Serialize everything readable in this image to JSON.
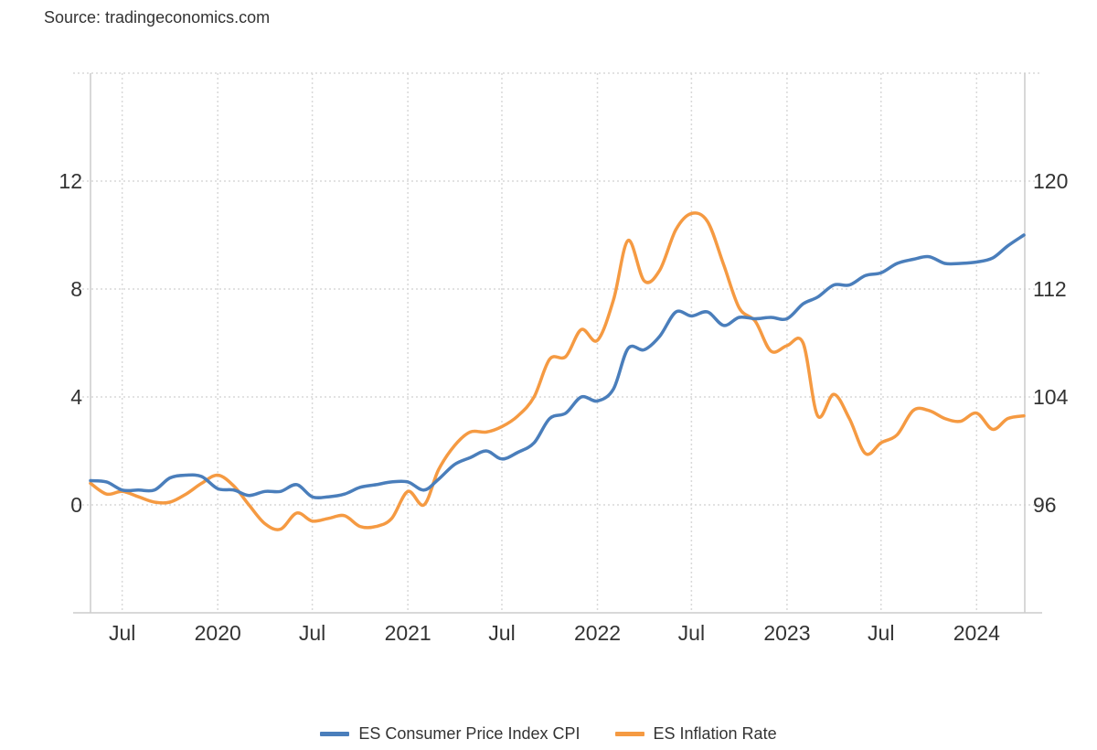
{
  "source": "Source: tradingeconomics.com",
  "colors": {
    "cpi": "#4a7ebb",
    "inflation": "#f59a42",
    "grid": "#d9d9d9",
    "axis": "#cccccc"
  },
  "chart_data": {
    "type": "line",
    "title": "",
    "xlabel": "",
    "left_axis": {
      "min": -4,
      "max": 16,
      "ticks": [
        0,
        4,
        8,
        12
      ]
    },
    "right_axis": {
      "min": 88,
      "max": 128,
      "ticks": [
        96,
        104,
        112,
        120
      ]
    },
    "x_ticks": [
      {
        "label": "Jul",
        "date": "2019-07-01"
      },
      {
        "label": "2020",
        "date": "2020-01-01"
      },
      {
        "label": "Jul",
        "date": "2020-07-01"
      },
      {
        "label": "2021",
        "date": "2021-01-01"
      },
      {
        "label": "Jul",
        "date": "2021-07-01"
      },
      {
        "label": "2022",
        "date": "2022-01-01"
      },
      {
        "label": "Jul",
        "date": "2022-07-01"
      },
      {
        "label": "2023",
        "date": "2023-01-01"
      },
      {
        "label": "Jul",
        "date": "2023-07-01"
      },
      {
        "label": "2024",
        "date": "2024-01-01"
      }
    ],
    "x_range": [
      "2019-05-01",
      "2024-04-01"
    ],
    "legend_position": "bottom",
    "grid": true,
    "series": [
      {
        "name": "ES Consumer Price Index CPI",
        "axis": "right",
        "color_key": "cpi",
        "x": [
          "2019-05-01",
          "2019-06-01",
          "2019-07-01",
          "2019-08-01",
          "2019-09-01",
          "2019-10-01",
          "2019-11-01",
          "2019-12-01",
          "2020-01-01",
          "2020-02-01",
          "2020-03-01",
          "2020-04-01",
          "2020-05-01",
          "2020-06-01",
          "2020-07-01",
          "2020-08-01",
          "2020-09-01",
          "2020-10-01",
          "2020-11-01",
          "2020-12-01",
          "2021-01-01",
          "2021-02-01",
          "2021-03-01",
          "2021-04-01",
          "2021-05-01",
          "2021-06-01",
          "2021-07-01",
          "2021-08-01",
          "2021-09-01",
          "2021-10-01",
          "2021-11-01",
          "2021-12-01",
          "2022-01-01",
          "2022-02-01",
          "2022-03-01",
          "2022-04-01",
          "2022-05-01",
          "2022-06-01",
          "2022-07-01",
          "2022-08-01",
          "2022-09-01",
          "2022-10-01",
          "2022-11-01",
          "2022-12-01",
          "2023-01-01",
          "2023-02-01",
          "2023-03-01",
          "2023-04-01",
          "2023-05-01",
          "2023-06-01",
          "2023-07-01",
          "2023-08-01",
          "2023-09-01",
          "2023-10-01",
          "2023-11-01",
          "2023-12-01",
          "2024-01-01",
          "2024-02-01",
          "2024-03-01",
          "2024-04-01"
        ],
        "values": [
          97.8,
          97.7,
          97.1,
          97.1,
          97.1,
          98.0,
          98.2,
          98.1,
          97.2,
          97.1,
          96.7,
          97.0,
          97.0,
          97.5,
          96.6,
          96.6,
          96.8,
          97.3,
          97.5,
          97.7,
          97.7,
          97.1,
          97.9,
          99.0,
          99.5,
          100.0,
          99.4,
          99.9,
          100.6,
          102.4,
          102.8,
          104.0,
          103.7,
          104.6,
          107.6,
          107.5,
          108.5,
          110.3,
          110.0,
          110.3,
          109.3,
          109.9,
          109.8,
          109.9,
          109.8,
          110.9,
          111.4,
          112.3,
          112.3,
          113.0,
          113.2,
          113.9,
          114.2,
          114.4,
          113.9,
          113.9,
          114.0,
          114.3,
          115.2,
          116.0
        ]
      },
      {
        "name": "ES Inflation Rate",
        "axis": "left",
        "color_key": "inflation",
        "x": [
          "2019-05-01",
          "2019-06-01",
          "2019-07-01",
          "2019-08-01",
          "2019-09-01",
          "2019-10-01",
          "2019-11-01",
          "2019-12-01",
          "2020-01-01",
          "2020-02-01",
          "2020-03-01",
          "2020-04-01",
          "2020-05-01",
          "2020-06-01",
          "2020-07-01",
          "2020-08-01",
          "2020-09-01",
          "2020-10-01",
          "2020-11-01",
          "2020-12-01",
          "2021-01-01",
          "2021-02-01",
          "2021-03-01",
          "2021-04-01",
          "2021-05-01",
          "2021-06-01",
          "2021-07-01",
          "2021-08-01",
          "2021-09-01",
          "2021-10-01",
          "2021-11-01",
          "2021-12-01",
          "2022-01-01",
          "2022-02-01",
          "2022-03-01",
          "2022-04-01",
          "2022-05-01",
          "2022-06-01",
          "2022-07-01",
          "2022-08-01",
          "2022-09-01",
          "2022-10-01",
          "2022-11-01",
          "2022-12-01",
          "2023-01-01",
          "2023-02-01",
          "2023-03-01",
          "2023-04-01",
          "2023-05-01",
          "2023-06-01",
          "2023-07-01",
          "2023-08-01",
          "2023-09-01",
          "2023-10-01",
          "2023-11-01",
          "2023-12-01",
          "2024-01-01",
          "2024-02-01",
          "2024-03-01",
          "2024-04-01"
        ],
        "values": [
          0.8,
          0.4,
          0.5,
          0.3,
          0.1,
          0.1,
          0.4,
          0.8,
          1.1,
          0.7,
          0.0,
          -0.7,
          -0.9,
          -0.3,
          -0.6,
          -0.5,
          -0.4,
          -0.8,
          -0.8,
          -0.5,
          0.5,
          0.0,
          1.3,
          2.2,
          2.7,
          2.7,
          2.9,
          3.3,
          4.0,
          5.4,
          5.5,
          6.5,
          6.1,
          7.6,
          9.8,
          8.3,
          8.7,
          10.2,
          10.8,
          10.5,
          8.9,
          7.3,
          6.8,
          5.7,
          5.9,
          6.0,
          3.3,
          4.1,
          3.2,
          1.9,
          2.3,
          2.6,
          3.5,
          3.5,
          3.2,
          3.1,
          3.4,
          2.8,
          3.2,
          3.3
        ]
      }
    ]
  }
}
